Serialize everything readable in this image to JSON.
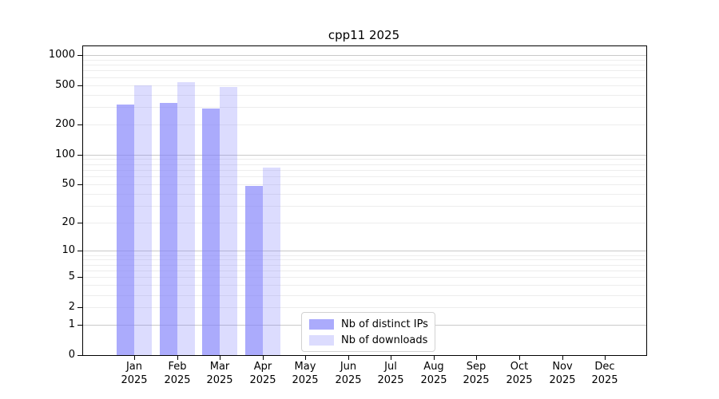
{
  "title": "cpp11 2025",
  "chart_data": {
    "type": "bar",
    "title": "cpp11 2025",
    "categories": [
      "Jan",
      "Feb",
      "Mar",
      "Apr",
      "May",
      "Jun",
      "Jul",
      "Aug",
      "Sep",
      "Oct",
      "Nov",
      "Dec"
    ],
    "year_label": "2025",
    "series": [
      {
        "name": "Nb of distinct IPs",
        "color": "#8080FAA8",
        "values": [
          320,
          330,
          290,
          48,
          null,
          null,
          null,
          null,
          null,
          null,
          null,
          null
        ]
      },
      {
        "name": "Nb of downloads",
        "color": "#8080FA47",
        "values": [
          495,
          540,
          480,
          74,
          null,
          null,
          null,
          null,
          null,
          null,
          null,
          null
        ]
      }
    ],
    "xlabel": "",
    "ylabel": "",
    "yscale": "log1p",
    "ylim": [
      0,
      1224
    ],
    "yticks": [
      0,
      1,
      2,
      5,
      10,
      20,
      50,
      100,
      200,
      500,
      1000
    ],
    "grid": {
      "axis": "y",
      "minor_color": "#EDEDED",
      "major_color": "#C9C9C9"
    },
    "legend": {
      "position": "lower center",
      "entries": [
        "Nb of distinct IPs",
        "Nb of downloads"
      ]
    },
    "axis_color": "#000000",
    "background_color": "#FFFFFF"
  }
}
